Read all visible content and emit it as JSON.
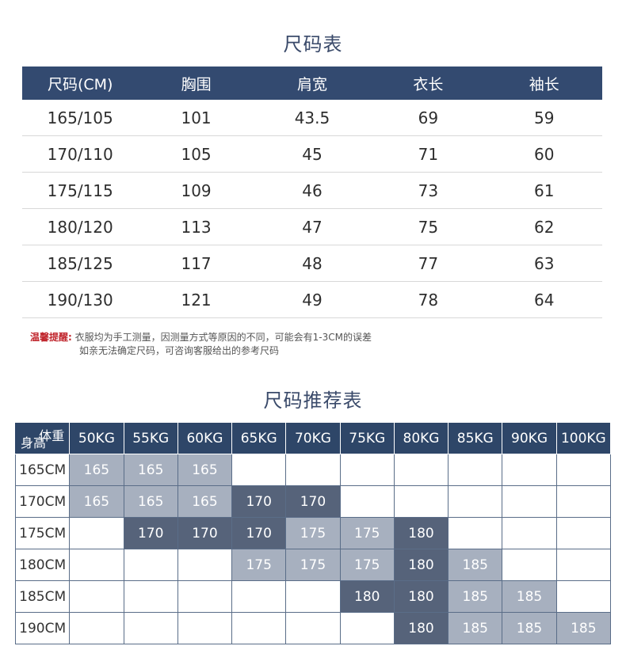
{
  "size_chart": {
    "title": "尺码表",
    "headers": [
      "尺码(CM)",
      "胸围",
      "肩宽",
      "衣长",
      "袖长"
    ],
    "rows": [
      [
        "165/105",
        "101",
        "43.5",
        "69",
        "59"
      ],
      [
        "170/110",
        "105",
        "45",
        "71",
        "60"
      ],
      [
        "175/115",
        "109",
        "46",
        "73",
        "61"
      ],
      [
        "180/120",
        "113",
        "47",
        "75",
        "62"
      ],
      [
        "185/125",
        "117",
        "48",
        "77",
        "63"
      ],
      [
        "190/130",
        "121",
        "49",
        "78",
        "64"
      ]
    ]
  },
  "note": {
    "label": "温馨提醒:",
    "line1": "衣服均为手工测量，因测量方式等原因的不同，可能会有1-3CM的误差",
    "line2": "如亲无法确定尺码，可咨询客服给出的参考尺码"
  },
  "recommend_chart": {
    "title": "尺码推荐表",
    "corner_weight": "体重",
    "corner_height": "身高",
    "weights": [
      "50KG",
      "55KG",
      "60KG",
      "65KG",
      "70KG",
      "75KG",
      "80KG",
      "85KG",
      "90KG",
      "100KG"
    ],
    "heights": [
      "165CM",
      "170CM",
      "175CM",
      "180CM",
      "185CM",
      "190CM"
    ],
    "cells": [
      [
        "165",
        "165",
        "165",
        "",
        "",
        "",
        "",
        "",
        "",
        ""
      ],
      [
        "165",
        "165",
        "165",
        "170",
        "170",
        "",
        "",
        "",
        "",
        ""
      ],
      [
        "",
        "170",
        "170",
        "170",
        "175",
        "175",
        "180",
        "",
        "",
        ""
      ],
      [
        "",
        "",
        "",
        "175",
        "175",
        "175",
        "180",
        "185",
        "",
        ""
      ],
      [
        "",
        "",
        "",
        "",
        "",
        "180",
        "180",
        "185",
        "185",
        ""
      ],
      [
        "",
        "",
        "",
        "",
        "",
        "",
        "180",
        "185",
        "185",
        "185"
      ]
    ],
    "shades": [
      [
        "light",
        "light",
        "light",
        "",
        "",
        "",
        "",
        "",
        "",
        ""
      ],
      [
        "light",
        "light",
        "light",
        "dark",
        "dark",
        "",
        "",
        "",
        "",
        ""
      ],
      [
        "",
        "dark",
        "dark",
        "dark",
        "light",
        "light",
        "dark",
        "",
        "",
        ""
      ],
      [
        "",
        "",
        "",
        "light",
        "light",
        "light",
        "dark",
        "light",
        "",
        ""
      ],
      [
        "",
        "",
        "",
        "",
        "",
        "dark",
        "dark",
        "light",
        "light",
        ""
      ],
      [
        "",
        "",
        "",
        "",
        "",
        "",
        "dark",
        "light",
        "light",
        "light"
      ]
    ],
    "colors": {
      "header": "#2e4668",
      "light": "#a7b0bf",
      "dark": "#56637a"
    }
  }
}
